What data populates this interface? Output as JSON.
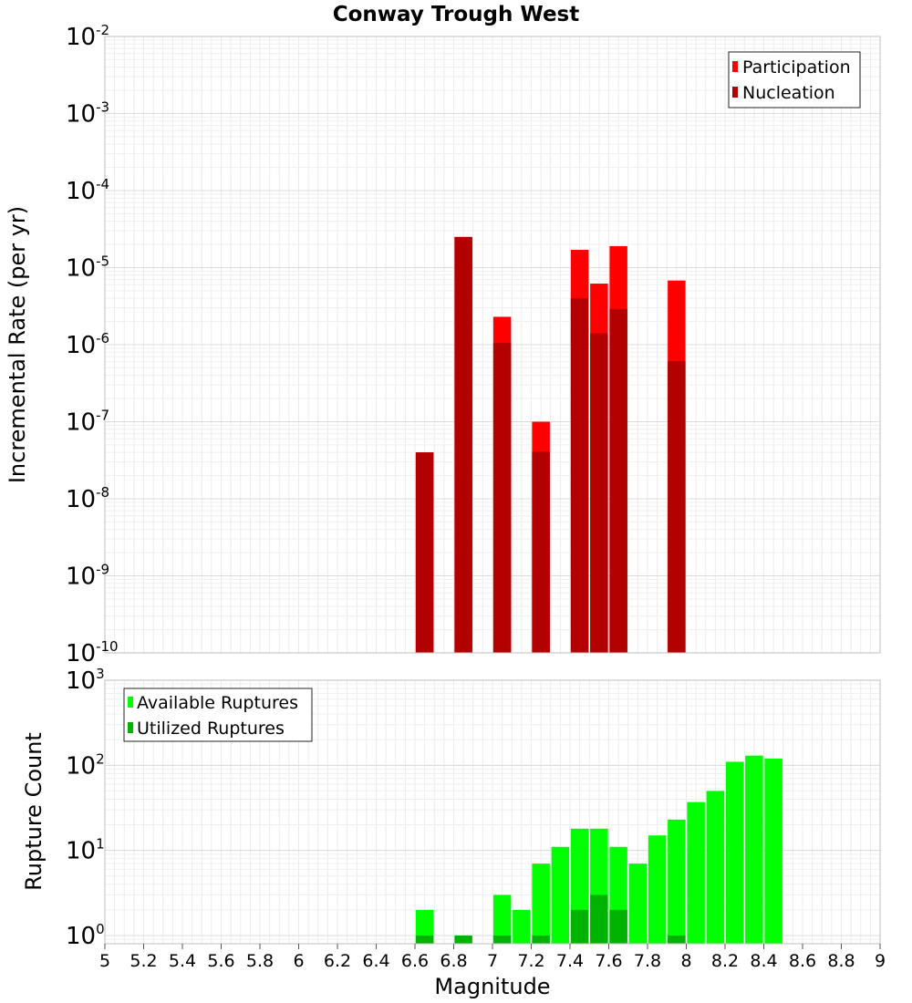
{
  "chart_data": [
    {
      "type": "bar",
      "title": "Conway Trough West",
      "xlabel": "",
      "ylabel": "Incremental Rate (per yr)",
      "yscale": "log",
      "ylim": [
        1e-10,
        0.01
      ],
      "xlim": [
        5,
        9
      ],
      "grid": true,
      "legend_position": "top-right",
      "series": [
        {
          "name": "Participation",
          "color": "#ff0000",
          "x": [
            6.65,
            6.85,
            7.05,
            7.25,
            7.45,
            7.55,
            7.65,
            7.95
          ],
          "values": [
            4e-08,
            2.5e-05,
            2.3e-06,
            1e-07,
            1.7e-05,
            6.2e-06,
            1.9e-05,
            6.8e-06
          ]
        },
        {
          "name": "Nucleation",
          "color": "#b30000",
          "x": [
            6.65,
            6.85,
            7.05,
            7.25,
            7.45,
            7.55,
            7.65,
            7.95
          ],
          "values": [
            4e-08,
            2.5e-05,
            1.05e-06,
            4.1e-08,
            4e-06,
            1.4e-06,
            2.9e-06,
            6.1e-07
          ]
        }
      ]
    },
    {
      "type": "bar",
      "title": "",
      "xlabel": "Magnitude",
      "ylabel": "Rupture Count",
      "yscale": "log",
      "ylim": [
        0.8,
        1000
      ],
      "xlim": [
        5,
        9
      ],
      "grid": true,
      "legend_position": "top-left",
      "series": [
        {
          "name": "Available Ruptures",
          "color": "#00ff00",
          "x": [
            6.65,
            7.05,
            7.15,
            7.25,
            7.35,
            7.45,
            7.55,
            7.65,
            7.75,
            7.85,
            7.95,
            8.05,
            8.15,
            8.25,
            8.35,
            8.45
          ],
          "values": [
            2,
            3,
            2,
            7,
            11,
            18,
            18,
            11,
            7,
            15,
            23,
            37,
            50,
            110,
            130,
            120
          ]
        },
        {
          "name": "Utilized Ruptures",
          "color": "#00b300",
          "x": [
            6.65,
            6.85,
            7.05,
            7.25,
            7.45,
            7.55,
            7.65,
            7.95
          ],
          "values": [
            1,
            1,
            1,
            1,
            2,
            3,
            2,
            1
          ]
        }
      ]
    }
  ],
  "x_ticks": [
    "5",
    "5.2",
    "5.4",
    "5.6",
    "5.8",
    "6",
    "6.2",
    "6.4",
    "6.6",
    "6.8",
    "7",
    "7.2",
    "7.4",
    "7.6",
    "7.8",
    "8",
    "8.2",
    "8.4",
    "8.6",
    "8.8",
    "9"
  ],
  "top_y_ticks": [
    {
      "base": "10",
      "exp": "-2"
    },
    {
      "base": "10",
      "exp": "-3"
    },
    {
      "base": "10",
      "exp": "-4"
    },
    {
      "base": "10",
      "exp": "-5"
    },
    {
      "base": "10",
      "exp": "-6"
    },
    {
      "base": "10",
      "exp": "-7"
    },
    {
      "base": "10",
      "exp": "-8"
    },
    {
      "base": "10",
      "exp": "-9"
    },
    {
      "base": "10",
      "exp": "-10"
    }
  ],
  "bottom_y_ticks": [
    {
      "base": "10",
      "exp": "3"
    },
    {
      "base": "10",
      "exp": "2"
    },
    {
      "base": "10",
      "exp": "1"
    },
    {
      "base": "10",
      "exp": "0"
    }
  ],
  "bottom_xlabel": "Magnitude"
}
